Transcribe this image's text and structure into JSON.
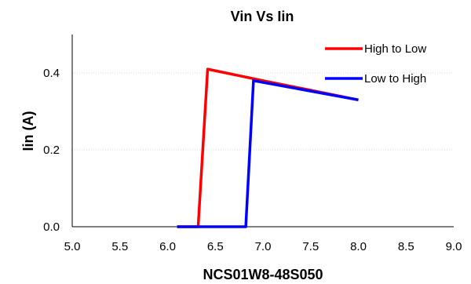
{
  "chart_data": {
    "type": "line",
    "title": "Vin Vs Iin",
    "xlabel": "NCS01W8-48S050",
    "ylabel": "Iin (A)",
    "xlim": [
      5.0,
      9.0
    ],
    "ylim": [
      0.0,
      0.5
    ],
    "x_ticks": [
      "5.0",
      "5.5",
      "6.0",
      "6.5",
      "7.0",
      "7.5",
      "8.0",
      "8.5",
      "9.0"
    ],
    "y_ticks": [
      "0.0",
      "0.2",
      "0.4"
    ],
    "grid": "horizontal",
    "legend_position": "top-right",
    "series": [
      {
        "name": "High to Low",
        "color": "#ff0000",
        "points": [
          [
            8.0,
            0.33
          ],
          [
            7.0,
            0.38
          ],
          [
            6.42,
            0.41
          ],
          [
            6.32,
            0.0
          ],
          [
            6.1,
            0.0
          ]
        ]
      },
      {
        "name": "Low to High",
        "color": "#0000ff",
        "points": [
          [
            6.1,
            0.0
          ],
          [
            6.82,
            0.0
          ],
          [
            6.9,
            0.38
          ],
          [
            8.0,
            0.33
          ]
        ]
      }
    ]
  }
}
